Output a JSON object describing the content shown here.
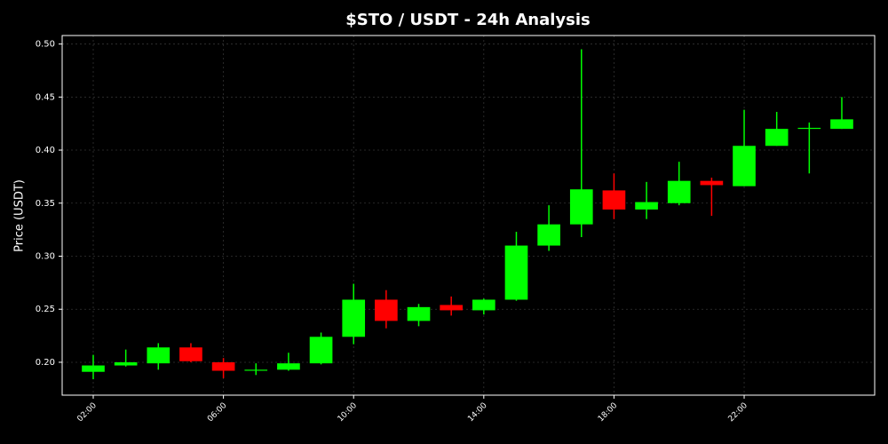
{
  "chart_data": {
    "type": "candlestick",
    "title": "$STO / USDT - 24h Analysis",
    "y_label": "Price (USDT)",
    "x": [
      2,
      3,
      4,
      5,
      6,
      7,
      8,
      9,
      10,
      11,
      12,
      13,
      14,
      15,
      16,
      17,
      18,
      19,
      20,
      21,
      22,
      23,
      24,
      25
    ],
    "open": [
      0.191,
      0.197,
      0.199,
      0.214,
      0.2,
      0.192,
      0.193,
      0.199,
      0.224,
      0.259,
      0.239,
      0.254,
      0.249,
      0.259,
      0.31,
      0.33,
      0.362,
      0.344,
      0.35,
      0.371,
      0.366,
      0.404,
      0.42,
      0.42
    ],
    "high": [
      0.207,
      0.212,
      0.218,
      0.218,
      0.204,
      0.199,
      0.209,
      0.228,
      0.274,
      0.268,
      0.255,
      0.262,
      0.26,
      0.323,
      0.348,
      0.495,
      0.378,
      0.37,
      0.389,
      0.374,
      0.438,
      0.436,
      0.426,
      0.45
    ],
    "low": [
      0.184,
      0.196,
      0.193,
      0.2,
      0.185,
      0.188,
      0.192,
      0.198,
      0.217,
      0.232,
      0.234,
      0.244,
      0.245,
      0.258,
      0.305,
      0.318,
      0.335,
      0.335,
      0.348,
      0.338,
      0.366,
      0.404,
      0.378,
      0.42
    ],
    "close": [
      0.197,
      0.2,
      0.214,
      0.201,
      0.192,
      0.193,
      0.199,
      0.224,
      0.259,
      0.239,
      0.252,
      0.249,
      0.259,
      0.31,
      0.33,
      0.363,
      0.344,
      0.351,
      0.371,
      0.367,
      0.404,
      0.42,
      0.421,
      0.429
    ],
    "up_color": "#00ff00",
    "down_color": "#ff0000",
    "xlim": [
      1.045,
      26.01
    ],
    "ylim": [
      0.169,
      0.508
    ],
    "xticks": [
      {
        "value": 2,
        "label": "02:00"
      },
      {
        "value": 6,
        "label": "06:00"
      },
      {
        "value": 10,
        "label": "10:00"
      },
      {
        "value": 14,
        "label": "14:00"
      },
      {
        "value": 18,
        "label": "18:00"
      },
      {
        "value": 22,
        "label": "22:00"
      }
    ],
    "yticks": [
      {
        "value": 0.2,
        "label": "0.20"
      },
      {
        "value": 0.25,
        "label": "0.25"
      },
      {
        "value": 0.3,
        "label": "0.30"
      },
      {
        "value": 0.35,
        "label": "0.35"
      },
      {
        "value": 0.4,
        "label": "0.40"
      },
      {
        "value": 0.45,
        "label": "0.45"
      },
      {
        "value": 0.5,
        "label": "0.50"
      }
    ],
    "grid": true
  }
}
